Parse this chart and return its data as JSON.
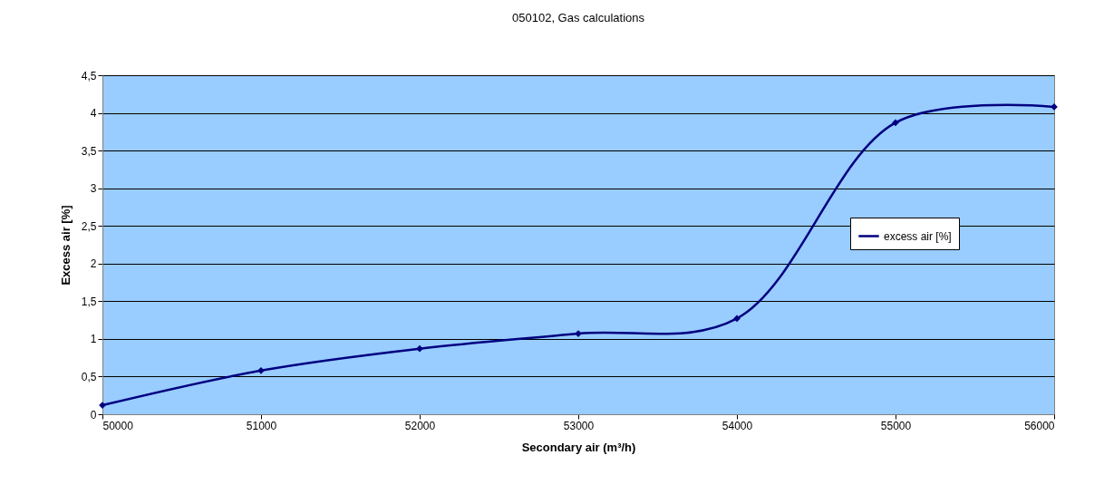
{
  "chart_data": {
    "type": "line",
    "title": "050102, Gas calculations",
    "xlabel": "Secondary air (m³/h)",
    "ylabel": "Excess air [%]",
    "x": [
      50000,
      51000,
      52000,
      53000,
      54000,
      55000,
      56000
    ],
    "series": [
      {
        "name": "excess air [%]",
        "color": "#000080",
        "values": [
          0.12,
          0.58,
          0.87,
          1.07,
          1.27,
          3.87,
          4.08
        ]
      }
    ],
    "xlim": [
      50000,
      56000
    ],
    "xticks": [
      50000,
      51000,
      52000,
      53000,
      54000,
      55000,
      56000
    ],
    "ylim": [
      0,
      4.5
    ],
    "yticks": [
      0,
      {
        "value": 0.5,
        "label": "0,5"
      },
      1,
      {
        "value": 1.5,
        "label": "1,5"
      },
      2,
      {
        "value": 2.5,
        "label": "2,5"
      },
      3,
      {
        "value": 3.5,
        "label": "3,5"
      },
      4,
      {
        "value": 4.5,
        "label": "4,5"
      }
    ],
    "grid": "y",
    "legend": "right",
    "marker": "diamond",
    "line_style": "solid"
  }
}
